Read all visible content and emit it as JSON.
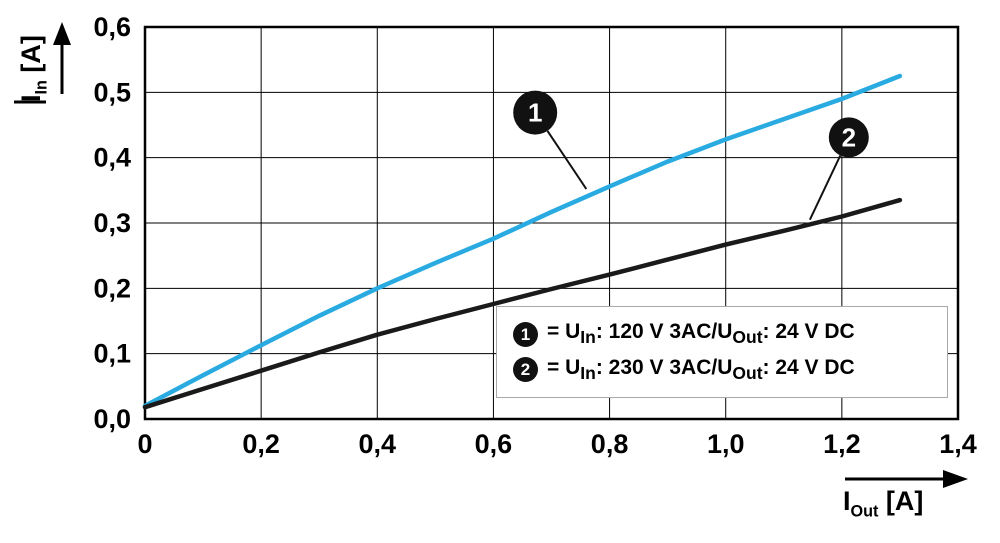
{
  "chart": {
    "y_axis": {
      "label_main": "I",
      "label_sub": "In",
      "label_unit": " [A]"
    },
    "x_axis": {
      "label_main": "I",
      "label_sub": "Out",
      "label_unit": " [A]"
    },
    "x_ticks": [
      "0",
      "0,2",
      "0,4",
      "0,6",
      "0,8",
      "1,0",
      "1,2",
      "1,4"
    ],
    "y_ticks": [
      "0,0",
      "0,1",
      "0,2",
      "0,3",
      "0,4",
      "0,5",
      "0,6"
    ]
  },
  "chart_data": {
    "type": "line",
    "title": "",
    "xlabel": "I_Out [A]",
    "ylabel": "I_In [A]",
    "xlim": [
      0,
      1.4
    ],
    "ylim": [
      0,
      0.6
    ],
    "grid": true,
    "legend_position": "inside bottom-right",
    "x_tick_values": [
      0,
      0.2,
      0.4,
      0.6,
      0.8,
      1.0,
      1.2,
      1.4
    ],
    "y_tick_values": [
      0,
      0.1,
      0.2,
      0.3,
      0.4,
      0.5,
      0.6
    ],
    "series": [
      {
        "name": "1: U_In: 120 V 3AC / U_Out: 24 V DC",
        "color": "#29abe2",
        "x": [
          0,
          0.1,
          0.2,
          0.3,
          0.4,
          0.5,
          0.6,
          0.7,
          0.8,
          0.9,
          1.0,
          1.1,
          1.2,
          1.3
        ],
        "y": [
          0.02,
          0.067,
          0.113,
          0.158,
          0.2,
          0.239,
          0.276,
          0.317,
          0.356,
          0.394,
          0.428,
          0.459,
          0.49,
          0.525
        ]
      },
      {
        "name": "2: U_In: 230 V 3AC / U_Out: 24 V DC",
        "color": "#1a1a1a",
        "x": [
          0,
          0.1,
          0.2,
          0.3,
          0.4,
          0.5,
          0.6,
          0.7,
          0.8,
          0.9,
          1.0,
          1.1,
          1.2,
          1.3
        ],
        "y": [
          0.018,
          0.046,
          0.074,
          0.102,
          0.129,
          0.153,
          0.176,
          0.199,
          0.221,
          0.244,
          0.267,
          0.288,
          0.31,
          0.335
        ]
      }
    ],
    "callouts": [
      {
        "label": "1",
        "at": [
          0.672,
          0.469
        ],
        "tip": [
          0.76,
          0.352
        ],
        "r": 22
      },
      {
        "label": "2",
        "at": [
          1.212,
          0.431
        ],
        "tip": [
          1.145,
          0.305
        ],
        "r": 20
      }
    ]
  },
  "legend": {
    "entries": [
      {
        "num": "1",
        "eq": "= U",
        "sub1": "In",
        "mid": ": 120 V 3AC/U",
        "sub2": "Out",
        "tail": ": 24 V DC"
      },
      {
        "num": "2",
        "eq": "= U",
        "sub1": "In",
        "mid": ": 230 V 3AC/U",
        "sub2": "Out",
        "tail": ": 24 V DC"
      }
    ]
  }
}
